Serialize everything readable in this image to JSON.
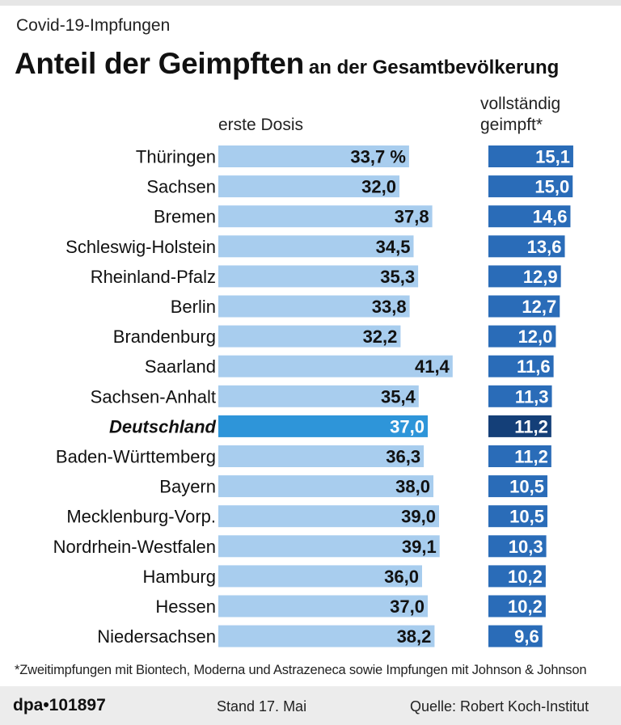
{
  "kicker": "Covid-19-Impfungen",
  "title": "Anteil der Geimpften",
  "subtitle": "an der Gesamtbevölkerung",
  "footnote": "*Zweitimpfungen mit Biontech, Moderna und Astrazeneca sowie Impfungen mit Johnson & Johnson",
  "footer": {
    "brand": "dpa•101897",
    "stand": "Stand 17. Mai",
    "source": "Quelle: Robert Koch-Institut"
  },
  "chart_data": {
    "type": "bar",
    "unit": "%",
    "colors": {
      "first": "#a8cdee",
      "first_highlight": "#2e95d9",
      "full": "#2a6cb8",
      "full_highlight": "#143f78"
    },
    "highlight": "Deutschland",
    "categories": [
      "Thüringen",
      "Sachsen",
      "Bremen",
      "Schleswig-Holstein",
      "Rheinland-Pfalz",
      "Berlin",
      "Brandenburg",
      "Saarland",
      "Sachsen-Anhalt",
      "Deutschland",
      "Baden-Württemberg",
      "Bayern",
      "Mecklenburg-Vorp.",
      "Nordrhein-Westfalen",
      "Hamburg",
      "Hessen",
      "Niedersachsen"
    ],
    "series": [
      {
        "name": "erste Dosis",
        "values": [
          33.7,
          32.0,
          37.8,
          34.5,
          35.3,
          33.8,
          32.2,
          41.4,
          35.4,
          37.0,
          36.3,
          38.0,
          39.0,
          39.1,
          36.0,
          37.0,
          38.2
        ],
        "labels": [
          "33,7 %",
          "32,0",
          "37,8",
          "34,5",
          "35,3",
          "33,8",
          "32,2",
          "41,4",
          "35,4",
          "37,0",
          "36,3",
          "38,0",
          "39,0",
          "39,1",
          "36,0",
          "37,0",
          "38,2"
        ]
      },
      {
        "name": "vollständig geimpft*",
        "name_lines": [
          "vollständig",
          "geimpft*"
        ],
        "values": [
          15.1,
          15.0,
          14.6,
          13.6,
          12.9,
          12.7,
          12.0,
          11.6,
          11.3,
          11.2,
          11.2,
          10.5,
          10.5,
          10.3,
          10.2,
          10.2,
          9.6
        ],
        "labels": [
          "15,1",
          "15,0",
          "14,6",
          "13,6",
          "12,9",
          "12,7",
          "12,0",
          "11,6",
          "11,3",
          "11,2",
          "11,2",
          "10,5",
          "10,5",
          "10,3",
          "10,2",
          "10,2",
          "9,6"
        ]
      }
    ]
  }
}
